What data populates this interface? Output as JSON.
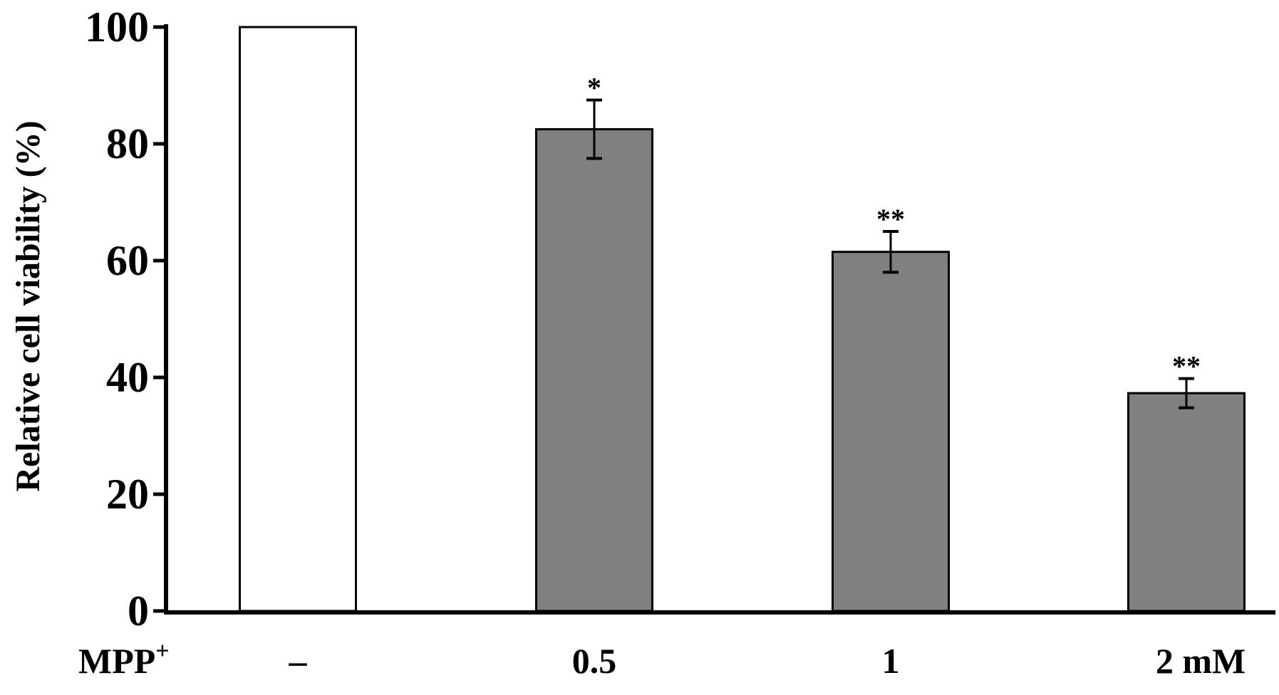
{
  "chart_data": {
    "type": "bar",
    "ylabel": "Relative cell viability (%)",
    "ylim": [
      0,
      100
    ],
    "yticks": [
      0,
      20,
      40,
      60,
      80,
      100
    ],
    "x_row_title": "MPP",
    "x_row_title_superscript": "+",
    "categories": [
      "–",
      "0.5",
      "1",
      "2 mM"
    ],
    "values": [
      100,
      82.5,
      61.5,
      37.3
    ],
    "errors": [
      0,
      5,
      3.5,
      2.5
    ],
    "significance": [
      "",
      "*",
      "**",
      "**"
    ],
    "bar_colors": [
      "#ffffff",
      "#808080",
      "#808080",
      "#808080"
    ],
    "grid": false
  }
}
